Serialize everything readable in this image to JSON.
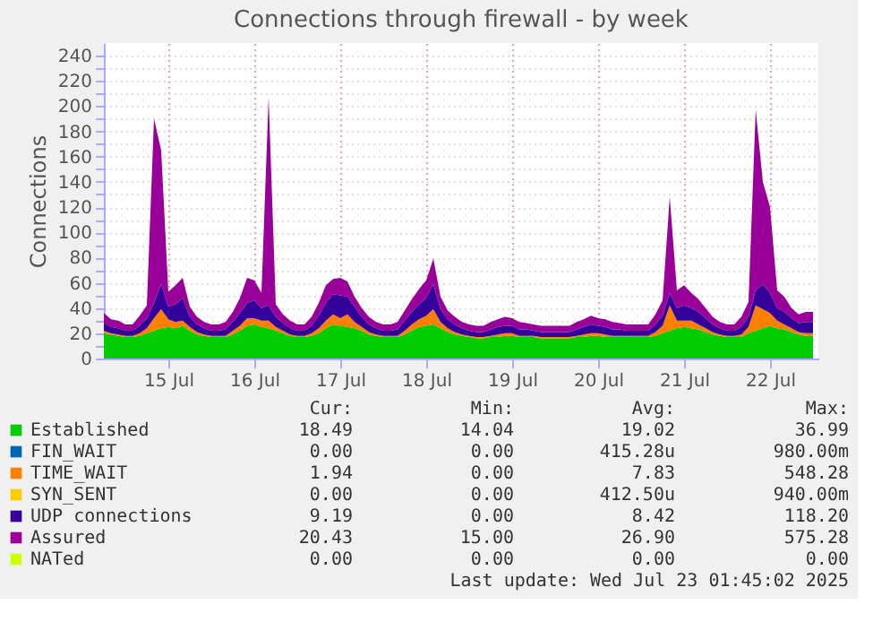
{
  "chart_data": {
    "type": "area",
    "stacked": true,
    "title": "Connections through firewall - by week",
    "ylabel": "Connections",
    "x": [
      "2025-07-14T18:00",
      "2025-07-14T20:00",
      "2025-07-14T22:00",
      "2025-07-15T00:00",
      "2025-07-15T02:00",
      "2025-07-15T04:00",
      "2025-07-15T06:00",
      "2025-07-15T08:00",
      "2025-07-15T10:00",
      "2025-07-15T12:00",
      "2025-07-15T14:00",
      "2025-07-15T16:00",
      "2025-07-15T18:00",
      "2025-07-15T20:00",
      "2025-07-15T22:00",
      "2025-07-16T00:00",
      "2025-07-16T02:00",
      "2025-07-16T04:00",
      "2025-07-16T06:00",
      "2025-07-16T08:00",
      "2025-07-16T10:00",
      "2025-07-16T12:00",
      "2025-07-16T14:00",
      "2025-07-16T16:00",
      "2025-07-16T18:00",
      "2025-07-16T20:00",
      "2025-07-16T22:00",
      "2025-07-17T00:00",
      "2025-07-17T02:00",
      "2025-07-17T04:00",
      "2025-07-17T06:00",
      "2025-07-17T08:00",
      "2025-07-17T10:00",
      "2025-07-17T12:00",
      "2025-07-17T14:00",
      "2025-07-17T16:00",
      "2025-07-17T18:00",
      "2025-07-17T20:00",
      "2025-07-17T22:00",
      "2025-07-18T00:00",
      "2025-07-18T02:00",
      "2025-07-18T04:00",
      "2025-07-18T06:00",
      "2025-07-18T08:00",
      "2025-07-18T10:00",
      "2025-07-18T12:00",
      "2025-07-18T14:00",
      "2025-07-18T16:00",
      "2025-07-18T18:00",
      "2025-07-18T20:00",
      "2025-07-18T22:00",
      "2025-07-19T00:00",
      "2025-07-19T02:00",
      "2025-07-19T04:00",
      "2025-07-19T06:00",
      "2025-07-19T08:00",
      "2025-07-19T10:00",
      "2025-07-19T12:00",
      "2025-07-19T14:00",
      "2025-07-19T16:00",
      "2025-07-19T18:00",
      "2025-07-19T20:00",
      "2025-07-19T22:00",
      "2025-07-20T00:00",
      "2025-07-20T02:00",
      "2025-07-20T04:00",
      "2025-07-20T06:00",
      "2025-07-20T08:00",
      "2025-07-20T10:00",
      "2025-07-20T12:00",
      "2025-07-20T14:00",
      "2025-07-20T16:00",
      "2025-07-20T18:00",
      "2025-07-20T20:00",
      "2025-07-20T22:00",
      "2025-07-21T00:00",
      "2025-07-21T02:00",
      "2025-07-21T04:00",
      "2025-07-21T06:00",
      "2025-07-21T08:00",
      "2025-07-21T10:00",
      "2025-07-21T12:00",
      "2025-07-21T14:00",
      "2025-07-21T16:00",
      "2025-07-21T18:00",
      "2025-07-21T20:00",
      "2025-07-21T22:00",
      "2025-07-22T00:00",
      "2025-07-22T02:00",
      "2025-07-22T04:00",
      "2025-07-22T06:00",
      "2025-07-22T08:00",
      "2025-07-22T10:00",
      "2025-07-22T12:00",
      "2025-07-22T14:00",
      "2025-07-22T16:00",
      "2025-07-22T18:00",
      "2025-07-22T20:00",
      "2025-07-22T22:00",
      "2025-07-23T00:00"
    ],
    "series": [
      {
        "name": "Established",
        "color": "#00cc00",
        "values": [
          20,
          19,
          18,
          17,
          17,
          18,
          20,
          22,
          24,
          25,
          24,
          26,
          22,
          19,
          18,
          17,
          17,
          17,
          19,
          22,
          26,
          27,
          25,
          24,
          22,
          20,
          18,
          17,
          17,
          18,
          20,
          24,
          27,
          26,
          25,
          24,
          22,
          19,
          18,
          17,
          17,
          17,
          19,
          22,
          25,
          26,
          27,
          24,
          21,
          19,
          18,
          17,
          16,
          16,
          17,
          17,
          18,
          18,
          17,
          17,
          17,
          16,
          16,
          16,
          16,
          16,
          17,
          17,
          18,
          18,
          17,
          17,
          17,
          17,
          17,
          17,
          17,
          18,
          20,
          22,
          24,
          25,
          24,
          23,
          21,
          19,
          18,
          17,
          17,
          17,
          20,
          22,
          24,
          26,
          24,
          23,
          21,
          19,
          18,
          18
        ]
      },
      {
        "name": "FIN_WAIT",
        "color": "#0066b3",
        "values": [
          null,
          null,
          null,
          null,
          null,
          null,
          null,
          null,
          null,
          null,
          null,
          null,
          null,
          null,
          null,
          null,
          null,
          null,
          null,
          null,
          null,
          null,
          null,
          null,
          null,
          null,
          null,
          null,
          null,
          null,
          null,
          null,
          null,
          null,
          null,
          null,
          null,
          null,
          null,
          null,
          null,
          null,
          null,
          null,
          null,
          null,
          null,
          null,
          null,
          null,
          null,
          null,
          null,
          null,
          null,
          null,
          null,
          null,
          null,
          null,
          null,
          null,
          null,
          null,
          null,
          null,
          null,
          null,
          null,
          null,
          null,
          null,
          null,
          null,
          null,
          null,
          null,
          null,
          null,
          null,
          null,
          null,
          null,
          null,
          null,
          null,
          null,
          null,
          null,
          null,
          null,
          null,
          null,
          null,
          null,
          null,
          null,
          null,
          null,
          null
        ]
      },
      {
        "name": "TIME_WAIT",
        "color": "#ff8000",
        "values": [
          2,
          1,
          1,
          1,
          1,
          2,
          4,
          10,
          15,
          6,
          5,
          4,
          3,
          2,
          1,
          1,
          1,
          1,
          3,
          4,
          6,
          5,
          5,
          6,
          3,
          2,
          1,
          1,
          1,
          2,
          4,
          6,
          8,
          6,
          10,
          5,
          3,
          2,
          1,
          1,
          1,
          1,
          3,
          5,
          6,
          8,
          12,
          5,
          3,
          2,
          1,
          1,
          1,
          1,
          1,
          2,
          2,
          2,
          1,
          1,
          1,
          1,
          1,
          1,
          1,
          1,
          1,
          2,
          2,
          2,
          2,
          1,
          1,
          1,
          1,
          1,
          1,
          3,
          6,
          20,
          6,
          5,
          6,
          4,
          3,
          2,
          1,
          1,
          1,
          2,
          5,
          20,
          15,
          10,
          6,
          4,
          3,
          2,
          2,
          2
        ]
      },
      {
        "name": "SYN_SENT",
        "color": "#ffcc00",
        "values": [
          null,
          null,
          null,
          null,
          null,
          null,
          null,
          null,
          null,
          null,
          null,
          null,
          null,
          null,
          null,
          null,
          null,
          null,
          null,
          null,
          null,
          null,
          null,
          null,
          null,
          null,
          null,
          null,
          null,
          null,
          null,
          null,
          null,
          null,
          null,
          null,
          null,
          null,
          null,
          null,
          null,
          null,
          null,
          null,
          null,
          null,
          null,
          null,
          null,
          null,
          null,
          null,
          null,
          null,
          null,
          null,
          null,
          null,
          null,
          null,
          null,
          null,
          null,
          null,
          null,
          null,
          null,
          null,
          null,
          null,
          null,
          null,
          null,
          null,
          null,
          null,
          null,
          null,
          null,
          null,
          null,
          null,
          null,
          null,
          null,
          null,
          null,
          null,
          null,
          null,
          null,
          null,
          null,
          null,
          null,
          null,
          null,
          null,
          null,
          null
        ]
      },
      {
        "name": "UDP connections",
        "color": "#330099",
        "values": [
          6,
          5,
          5,
          4,
          4,
          6,
          8,
          12,
          20,
          10,
          14,
          18,
          8,
          6,
          5,
          4,
          4,
          5,
          7,
          10,
          12,
          14,
          10,
          12,
          8,
          6,
          5,
          4,
          4,
          6,
          10,
          14,
          16,
          18,
          14,
          12,
          8,
          6,
          5,
          4,
          4,
          5,
          8,
          10,
          12,
          14,
          20,
          10,
          7,
          6,
          5,
          4,
          4,
          4,
          5,
          6,
          6,
          6,
          5,
          5,
          4,
          4,
          4,
          4,
          4,
          4,
          5,
          6,
          7,
          6,
          6,
          5,
          5,
          4,
          4,
          4,
          4,
          6,
          8,
          10,
          10,
          12,
          10,
          10,
          8,
          6,
          5,
          4,
          4,
          6,
          8,
          12,
          20,
          16,
          10,
          10,
          8,
          7,
          9,
          9
        ]
      },
      {
        "name": "Assured",
        "color": "#990099",
        "values": [
          8,
          6,
          6,
          5,
          5,
          8,
          10,
          146,
          106,
          12,
          15,
          16,
          8,
          6,
          5,
          5,
          5,
          6,
          8,
          12,
          20,
          16,
          12,
          165,
          10,
          7,
          6,
          5,
          5,
          7,
          10,
          14,
          12,
          14,
          12,
          8,
          7,
          6,
          5,
          5,
          5,
          6,
          8,
          10,
          12,
          14,
          20,
          10,
          7,
          6,
          5,
          5,
          5,
          5,
          6,
          6,
          7,
          6,
          6,
          5,
          5,
          5,
          5,
          5,
          5,
          5,
          6,
          6,
          7,
          6,
          6,
          6,
          5,
          5,
          5,
          5,
          5,
          8,
          12,
          76,
          14,
          16,
          12,
          10,
          8,
          6,
          5,
          5,
          5,
          8,
          12,
          143,
          81,
          68,
          14,
          12,
          8,
          7,
          8,
          8
        ]
      },
      {
        "name": "NATed",
        "color": "#ccff00",
        "values": [
          null,
          null,
          null,
          null,
          null,
          null,
          null,
          null,
          null,
          null,
          null,
          null,
          null,
          null,
          null,
          null,
          null,
          null,
          null,
          null,
          null,
          null,
          null,
          null,
          null,
          null,
          null,
          null,
          null,
          null,
          null,
          null,
          null,
          null,
          null,
          null,
          null,
          null,
          null,
          null,
          null,
          null,
          null,
          null,
          null,
          null,
          null,
          null,
          null,
          null,
          null,
          null,
          null,
          null,
          null,
          null,
          null,
          null,
          null,
          null,
          null,
          null,
          null,
          null,
          null,
          null,
          null,
          null,
          null,
          null,
          null,
          null,
          null,
          null,
          null,
          null,
          null,
          null,
          null,
          null,
          null,
          null,
          null,
          null,
          null,
          null,
          null,
          null,
          null,
          null,
          null,
          null,
          null,
          null,
          null,
          null,
          null,
          null,
          null,
          null
        ]
      }
    ],
    "xlim": [
      "2025-07-14T18:00",
      "2025-07-23T01:30"
    ],
    "xticks": [
      {
        "value": "2025-07-15T12:00",
        "label": "15 Jul"
      },
      {
        "value": "2025-07-16T12:00",
        "label": "16 Jul"
      },
      {
        "value": "2025-07-17T12:00",
        "label": "17 Jul"
      },
      {
        "value": "2025-07-18T12:00",
        "label": "18 Jul"
      },
      {
        "value": "2025-07-19T12:00",
        "label": "19 Jul"
      },
      {
        "value": "2025-07-20T12:00",
        "label": "20 Jul"
      },
      {
        "value": "2025-07-21T12:00",
        "label": "21 Jul"
      },
      {
        "value": "2025-07-22T12:00",
        "label": "22 Jul"
      }
    ],
    "ylim": [
      0,
      250
    ],
    "yticks": [
      0,
      {
        "value": 10,
        "label": null
      },
      20,
      {
        "value": 30,
        "label": null
      },
      40,
      {
        "value": 50,
        "label": null
      },
      60,
      {
        "value": 70,
        "label": null
      },
      80,
      {
        "value": 90,
        "label": null
      },
      100,
      {
        "value": 110,
        "label": null
      },
      120,
      {
        "value": 130,
        "label": null
      },
      140,
      {
        "value": 150,
        "label": null
      },
      160,
      {
        "value": 170,
        "label": null
      },
      180,
      {
        "value": 190,
        "label": null
      },
      200,
      {
        "value": 210,
        "label": null
      },
      220,
      {
        "value": 230,
        "label": null
      },
      240
    ],
    "grid": true,
    "legend": "bottom",
    "annotations": [
      "Cur:",
      "Min:",
      "Avg:",
      "Max:",
      "18.49",
      "14.04",
      "19.02",
      "36.99",
      "0.00",
      "0.00",
      "415.28u",
      "980.00m",
      "1.94",
      "0.00",
      "7.83",
      "548.28",
      "0.00",
      "0.00",
      "412.50u",
      "940.00m",
      "9.19",
      "0.00",
      "8.42",
      "118.20",
      "20.43",
      "15.00",
      "26.90",
      "575.28",
      "0.00",
      "0.00",
      "0.00",
      "0.00",
      "Last update: Wed Jul 23 01:45:02 2025"
    ]
  }
}
